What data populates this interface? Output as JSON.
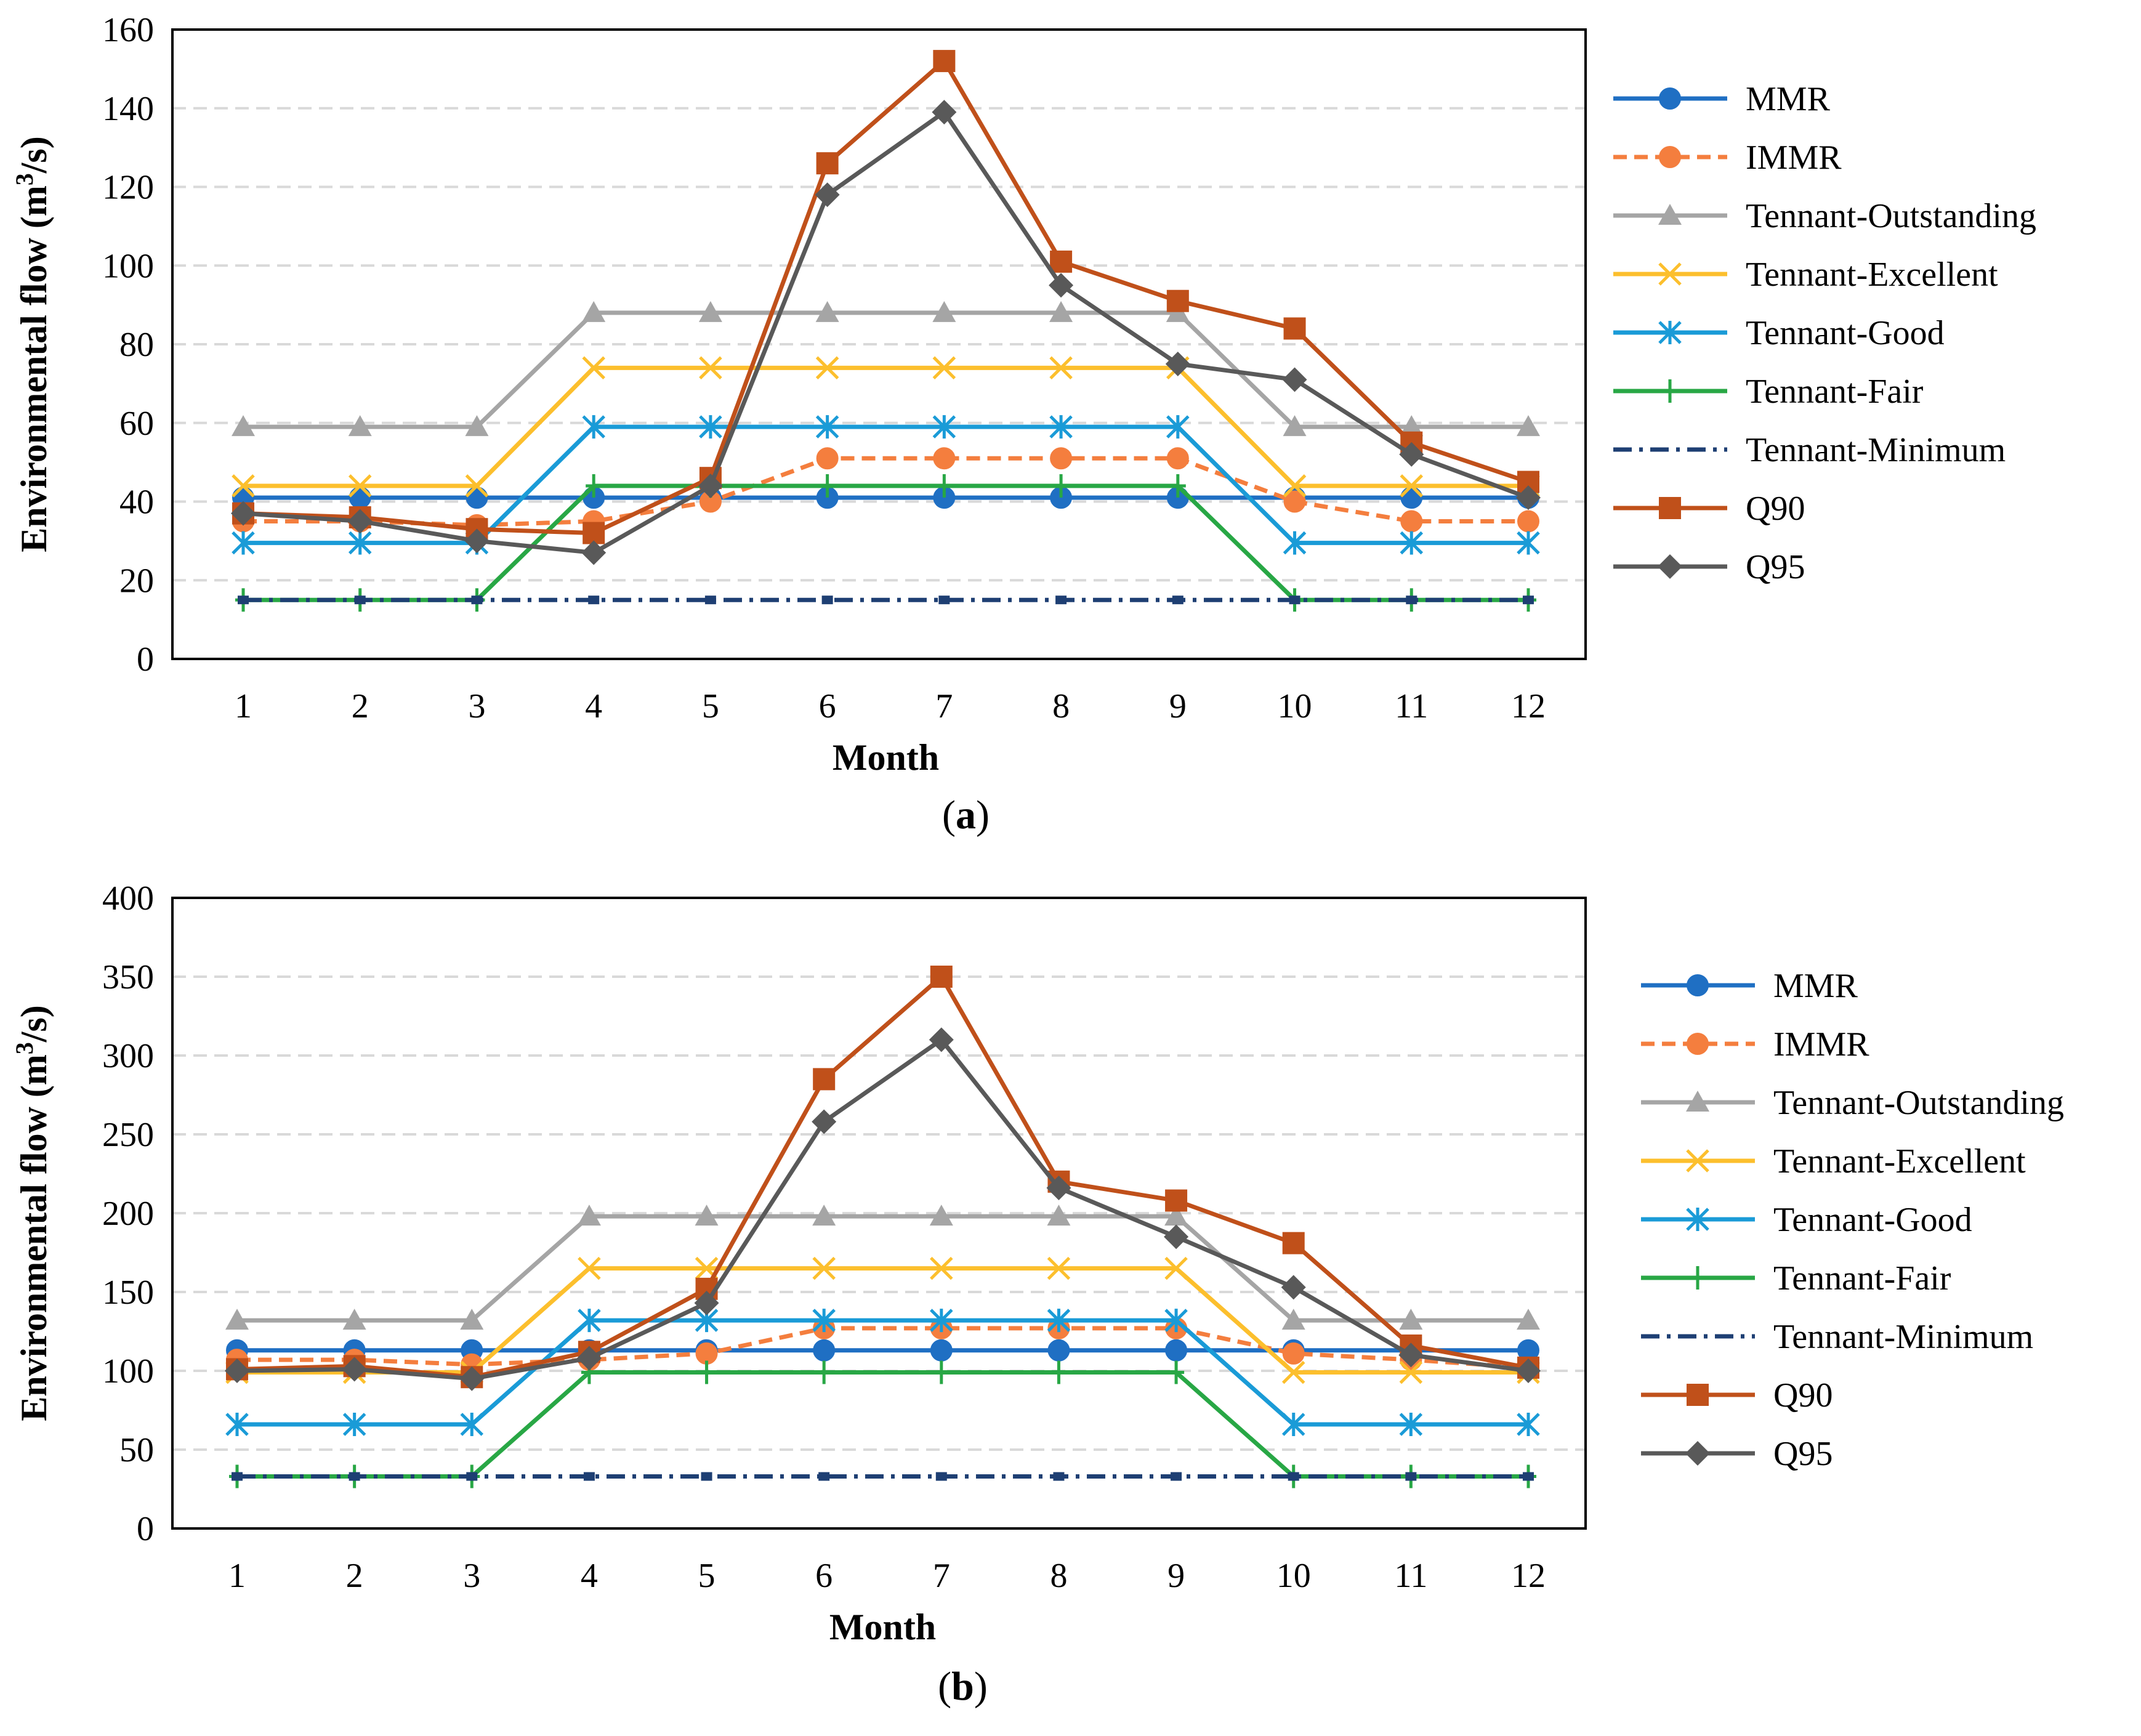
{
  "chart_data": [
    {
      "type": "line",
      "panel_label": "a",
      "title": "",
      "xlabel": "Month",
      "ylabel_prefix": "Environmental flow (m",
      "ylabel_sup": "3",
      "ylabel_suffix": "/s)",
      "xlim": [
        1,
        12
      ],
      "ylim": [
        0,
        160
      ],
      "yticks": [
        0,
        20,
        40,
        60,
        80,
        100,
        120,
        140,
        160
      ],
      "categories": [
        1,
        2,
        3,
        4,
        5,
        6,
        7,
        8,
        9,
        10,
        11,
        12
      ],
      "grid": "horizontal dashed",
      "legend_position": "right",
      "series": [
        {
          "name": "MMR",
          "color": "#1f6fc3",
          "dash": "solid",
          "marker": "circle",
          "values": [
            41,
            41,
            41,
            41,
            41,
            41,
            41,
            41,
            41,
            41,
            41,
            41
          ]
        },
        {
          "name": "IMMR",
          "color": "#f47e3e",
          "dash": "dashed",
          "marker": "circle",
          "values": [
            35,
            35,
            34,
            35,
            40,
            51,
            51,
            51,
            51,
            40,
            35,
            35
          ]
        },
        {
          "name": "Tennant-Outstanding",
          "color": "#a5a5a5",
          "dash": "solid",
          "marker": "triangle",
          "values": [
            59,
            59,
            59,
            88,
            88,
            88,
            88,
            88,
            88,
            59,
            59,
            59
          ]
        },
        {
          "name": "Tennant-Excellent",
          "color": "#fcbf2d",
          "dash": "solid",
          "marker": "x",
          "values": [
            44,
            44,
            44,
            74,
            74,
            74,
            74,
            74,
            74,
            44,
            44,
            44
          ]
        },
        {
          "name": "Tennant-Good",
          "color": "#1a9bd7",
          "dash": "solid",
          "marker": "asterisk",
          "values": [
            29.5,
            29.5,
            29.5,
            59,
            59,
            59,
            59,
            59,
            59,
            29.5,
            29.5,
            29.5
          ]
        },
        {
          "name": "Tennant-Fair",
          "color": "#28a745",
          "dash": "solid",
          "marker": "plus",
          "values": [
            15,
            15,
            15,
            44,
            44,
            44,
            44,
            44,
            44,
            15,
            15,
            15
          ]
        },
        {
          "name": "Tennant-Minimum",
          "color": "#1e3f73",
          "dash": "dashdot",
          "marker": "none",
          "values": [
            15,
            15,
            15,
            15,
            15,
            15,
            15,
            15,
            15,
            15,
            15,
            15
          ]
        },
        {
          "name": "Q90",
          "color": "#c0501a",
          "dash": "solid",
          "marker": "square",
          "values": [
            37,
            36,
            33,
            32,
            46,
            126,
            152,
            101,
            91,
            84,
            55,
            45
          ]
        },
        {
          "name": "Q95",
          "color": "#595959",
          "dash": "solid",
          "marker": "diamond",
          "values": [
            37,
            35,
            30,
            27,
            44,
            118,
            139,
            95,
            75,
            71,
            52,
            41
          ]
        }
      ]
    },
    {
      "type": "line",
      "panel_label": "b",
      "title": "",
      "xlabel": "Month",
      "ylabel_prefix": "Environmental flow (m",
      "ylabel_sup": "3",
      "ylabel_suffix": "/s)",
      "xlim": [
        1,
        12
      ],
      "ylim": [
        0,
        400
      ],
      "yticks": [
        0,
        50,
        100,
        150,
        200,
        250,
        300,
        350,
        400
      ],
      "categories": [
        1,
        2,
        3,
        4,
        5,
        6,
        7,
        8,
        9,
        10,
        11,
        12
      ],
      "grid": "horizontal dashed",
      "legend_position": "right",
      "series": [
        {
          "name": "MMR",
          "color": "#1f6fc3",
          "dash": "solid",
          "marker": "circle",
          "values": [
            113,
            113,
            113,
            113,
            113,
            113,
            113,
            113,
            113,
            113,
            113,
            113
          ]
        },
        {
          "name": "IMMR",
          "color": "#f47e3e",
          "dash": "dashed",
          "marker": "circle",
          "values": [
            107,
            107,
            104,
            107,
            111,
            127,
            127,
            127,
            127,
            111,
            107,
            102
          ]
        },
        {
          "name": "Tennant-Outstanding",
          "color": "#a5a5a5",
          "dash": "solid",
          "marker": "triangle",
          "values": [
            132,
            132,
            132,
            198,
            198,
            198,
            198,
            198,
            198,
            132,
            132,
            132
          ]
        },
        {
          "name": "Tennant-Excellent",
          "color": "#fcbf2d",
          "dash": "solid",
          "marker": "x",
          "values": [
            99,
            99,
            99,
            165,
            165,
            165,
            165,
            165,
            165,
            99,
            99,
            99
          ]
        },
        {
          "name": "Tennant-Good",
          "color": "#1a9bd7",
          "dash": "solid",
          "marker": "asterisk",
          "values": [
            66,
            66,
            66,
            132,
            132,
            132,
            132,
            132,
            132,
            66,
            66,
            66
          ]
        },
        {
          "name": "Tennant-Fair",
          "color": "#28a745",
          "dash": "solid",
          "marker": "plus",
          "values": [
            33,
            33,
            33,
            99,
            99,
            99,
            99,
            99,
            99,
            33,
            33,
            33
          ]
        },
        {
          "name": "Tennant-Minimum",
          "color": "#1e3f73",
          "dash": "dashdot",
          "marker": "none",
          "values": [
            33,
            33,
            33,
            33,
            33,
            33,
            33,
            33,
            33,
            33,
            33,
            33
          ]
        },
        {
          "name": "Q90",
          "color": "#c0501a",
          "dash": "solid",
          "marker": "square",
          "values": [
            101,
            103,
            96,
            112,
            152,
            285,
            350,
            220,
            208,
            181,
            116,
            102
          ]
        },
        {
          "name": "Q95",
          "color": "#595959",
          "dash": "solid",
          "marker": "diamond",
          "values": [
            100,
            101,
            95,
            108,
            143,
            258,
            310,
            216,
            185,
            153,
            110,
            100
          ]
        }
      ]
    }
  ]
}
